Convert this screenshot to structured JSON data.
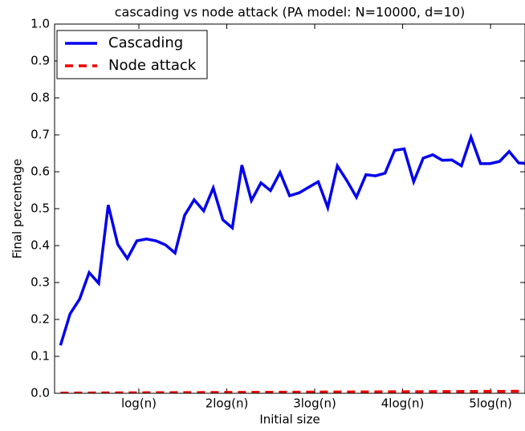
{
  "chart_data": {
    "type": "line",
    "title": "cascading vs node attack (PA model: N=10000, d=10)",
    "xlabel": "Initial size",
    "ylabel": "Final percentage",
    "x": [
      1,
      2,
      3,
      4,
      5,
      6,
      7,
      8,
      9,
      10,
      11,
      12,
      13,
      14,
      15,
      16,
      17,
      18,
      19,
      20,
      21,
      22,
      23,
      24,
      25,
      26,
      27,
      28,
      29,
      30,
      31,
      32,
      33,
      34,
      35,
      36,
      37,
      38,
      39,
      40,
      41,
      42,
      43,
      44,
      45,
      46,
      47,
      48,
      49,
      50
    ],
    "series": [
      {
        "name": "Cascading",
        "color": "#0000ee",
        "dash": "solid",
        "values": [
          0.13,
          0.215,
          0.255,
          0.327,
          0.298,
          0.51,
          0.403,
          0.365,
          0.413,
          0.418,
          0.413,
          0.402,
          0.38,
          0.482,
          0.524,
          0.494,
          0.556,
          0.47,
          0.448,
          0.618,
          0.522,
          0.57,
          0.549,
          0.598,
          0.535,
          0.543,
          0.558,
          0.573,
          0.503,
          0.616,
          0.576,
          0.531,
          0.592,
          0.589,
          0.596,
          0.658,
          0.662,
          0.573,
          0.637,
          0.646,
          0.631,
          0.632,
          0.616,
          0.694,
          0.622,
          0.622,
          0.628,
          0.655,
          0.624,
          0.622
        ]
      },
      {
        "name": "Node attack",
        "color": "#ee0000",
        "dash": "dashed",
        "values": [
          0.0006,
          0.0007,
          0.0008,
          0.0009,
          0.001,
          0.0011,
          0.0012,
          0.0013,
          0.0014,
          0.0015,
          0.0016,
          0.0017,
          0.0018,
          0.0019,
          0.002,
          0.0021,
          0.0022,
          0.0023,
          0.0024,
          0.0025,
          0.0026,
          0.0027,
          0.0028,
          0.0029,
          0.003,
          0.0031,
          0.0032,
          0.0033,
          0.0034,
          0.0035,
          0.0036,
          0.0037,
          0.0038,
          0.0039,
          0.004,
          0.0041,
          0.0042,
          0.0043,
          0.0044,
          0.0045,
          0.0046,
          0.0047,
          0.0048,
          0.0049,
          0.005,
          0.0051,
          0.0052,
          0.0053,
          0.0054,
          0.0055
        ]
      }
    ],
    "xlim": [
      0.38,
      49.66
    ],
    "xticks": [
      {
        "value": 9.21,
        "label": "log(n)"
      },
      {
        "value": 18.42,
        "label": "2log(n)"
      },
      {
        "value": 27.63,
        "label": "3log(n)"
      },
      {
        "value": 36.84,
        "label": "4log(n)"
      },
      {
        "value": 46.05,
        "label": "5log(n)"
      }
    ],
    "ylim": [
      0,
      1
    ],
    "yticks": [
      {
        "value": 0,
        "label": "0.0"
      },
      {
        "value": 0.1,
        "label": "0.1"
      },
      {
        "value": 0.2,
        "label": "0.2"
      },
      {
        "value": 0.3,
        "label": "0.3"
      },
      {
        "value": 0.4,
        "label": "0.4"
      },
      {
        "value": 0.5,
        "label": "0.5"
      },
      {
        "value": 0.6,
        "label": "0.6"
      },
      {
        "value": 0.7,
        "label": "0.7"
      },
      {
        "value": 0.8,
        "label": "0.8"
      },
      {
        "value": 0.9,
        "label": "0.9"
      },
      {
        "value": 1,
        "label": "1.0"
      }
    ],
    "legend": "upper left",
    "grid": false
  }
}
